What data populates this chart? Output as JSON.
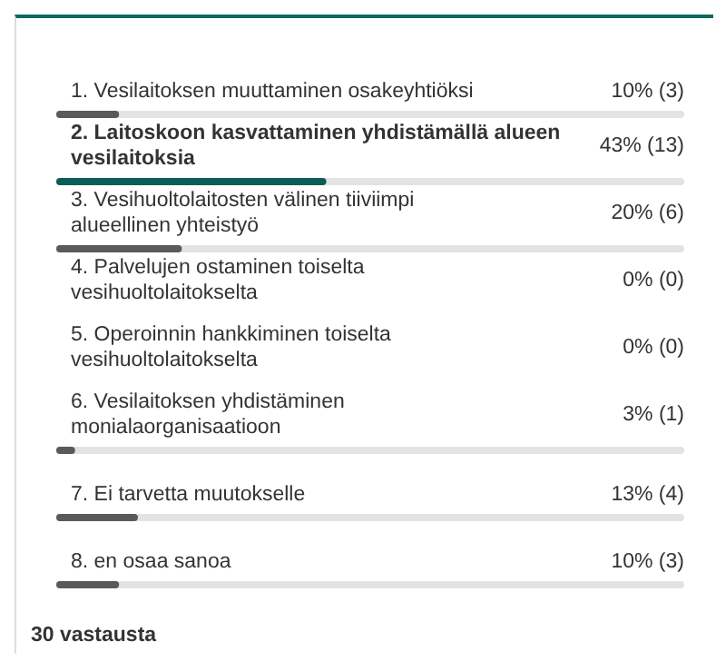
{
  "chart_data": {
    "type": "bar",
    "orientation": "horizontal",
    "categories": [
      "1. Vesilaitoksen muuttaminen osakeyhtiöksi",
      "2. Laitoskoon kasvattaminen yhdistämällä alueen vesilaitoksia",
      "3. Vesihuoltolaitosten välinen tiiviimpi alueellinen yhteistyö",
      "4. Palvelujen ostaminen toiselta vesihuoltolaitokselta",
      "5. Operoinnin hankkiminen toiselta vesihuoltolaitokselta",
      "6. Vesilaitoksen yhdistäminen monialaorganisaatioon",
      "7. Ei tarvetta muutokselle",
      "8. en osaa sanoa"
    ],
    "values": [
      10,
      43,
      20,
      0,
      0,
      3,
      13,
      10
    ],
    "value_labels": [
      "10% (3)",
      "43% (13)",
      "20% (6)",
      "0% (0)",
      "0% (0)",
      "3% (1)",
      "13% (4)",
      "10% (3)"
    ],
    "colors": [
      "#5a5a5a",
      "#0b5e55",
      "#5a5a5a",
      "#5a5a5a",
      "#5a5a5a",
      "#5a5a5a",
      "#5a5a5a",
      "#5a5a5a"
    ],
    "xlim": [
      0,
      100
    ],
    "tick_labels": "y",
    "annotations": [
      "30 vastausta"
    ]
  }
}
